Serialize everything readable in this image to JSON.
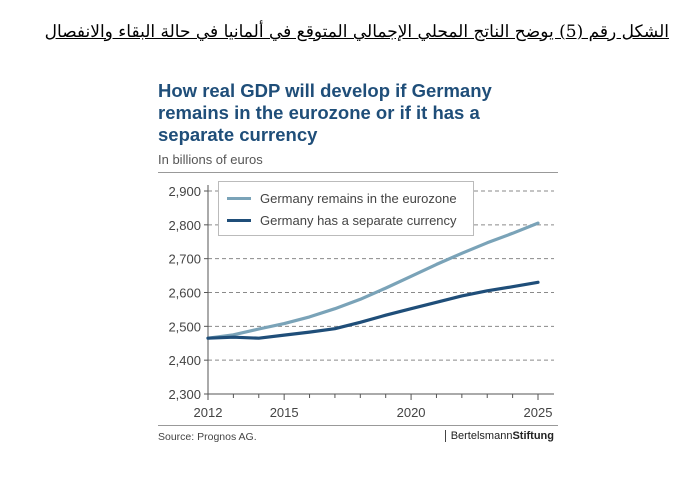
{
  "caption": "الشكل رقم (5) يوضح الناتج المحلي الإجمالي المتوقع في ألمانيا في حالة البقاء والانفصال",
  "chart_data": {
    "type": "line",
    "title_lines": [
      "How real GDP will develop if Germany",
      "remains in the eurozone or if it has a",
      "separate currency"
    ],
    "unit_label": "In billions of euros",
    "xlabel": "",
    "ylabel": "",
    "xlim": [
      2012,
      2025
    ],
    "ylim": [
      2300,
      2900
    ],
    "yticks": [
      2300,
      2400,
      2500,
      2600,
      2700,
      2800,
      2900
    ],
    "ytick_labels": [
      "2,300",
      "2,400",
      "2,500",
      "2,600",
      "2,700",
      "2,800",
      "2,900"
    ],
    "xticks": [
      2012,
      2015,
      2020,
      2025
    ],
    "xtick_labels": [
      "2012",
      "2015",
      "2020",
      "2025"
    ],
    "grid": "horizontal dashed",
    "legend_position": "top-left",
    "series": [
      {
        "name": "Germany remains in the eurozone",
        "color": "#7aa3b8",
        "x": [
          2012,
          2013,
          2014,
          2015,
          2016,
          2017,
          2018,
          2019,
          2020,
          2021,
          2022,
          2023,
          2024,
          2025
        ],
        "y": [
          2465,
          2475,
          2492,
          2508,
          2528,
          2552,
          2580,
          2613,
          2648,
          2683,
          2716,
          2747,
          2775,
          2805
        ]
      },
      {
        "name": "Germany has a separate currency",
        "color": "#1f4e79",
        "x": [
          2012,
          2013,
          2014,
          2015,
          2016,
          2017,
          2018,
          2019,
          2020,
          2021,
          2022,
          2023,
          2024,
          2025
        ],
        "y": [
          2465,
          2468,
          2465,
          2474,
          2483,
          2493,
          2512,
          2533,
          2552,
          2571,
          2590,
          2605,
          2617,
          2630
        ]
      }
    ]
  },
  "source": "Source: Prognos AG.",
  "publisher": {
    "light": "Bertelsmann",
    "heavy": "Stiftung"
  }
}
